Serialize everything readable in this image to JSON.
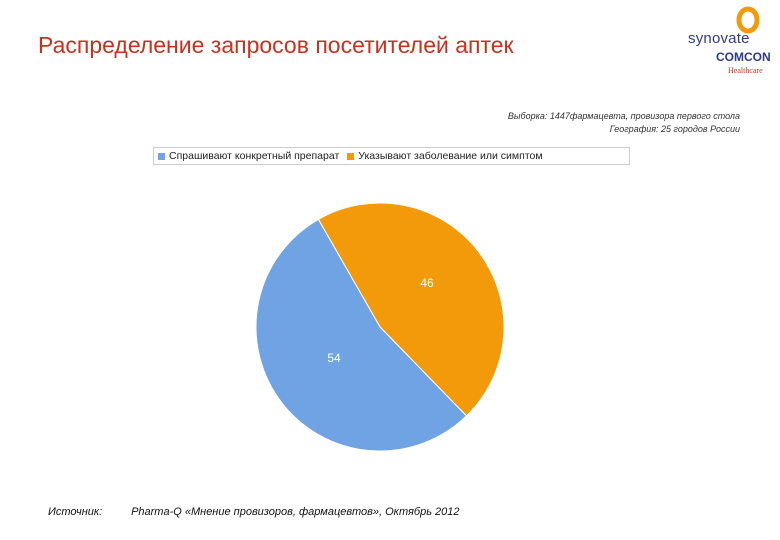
{
  "header": {
    "title": "Распределение запросов посетителей аптек"
  },
  "logo": {
    "line1": "synovate",
    "line2": "COMCON",
    "line3": "Healthcare"
  },
  "meta": {
    "line1": "Выборка: 1447фармацевта, провизора первого стола",
    "line2": "География: 25 городов  России"
  },
  "chart_data": {
    "type": "pie",
    "slices": [
      {
        "name": "Спрашивают конкретный препарат",
        "value": 54,
        "label": "54",
        "color": "#6fa3e3"
      },
      {
        "name": "Указывают заболевание или симптом",
        "value": 46,
        "label": "46",
        "color": "#f39a0b"
      }
    ],
    "legend_position": "top"
  },
  "footer": {
    "source_label": "Источник:",
    "source_text": "Pharma-Q «Мнение провизоров, фармацевтов», Октябрь 2012"
  }
}
